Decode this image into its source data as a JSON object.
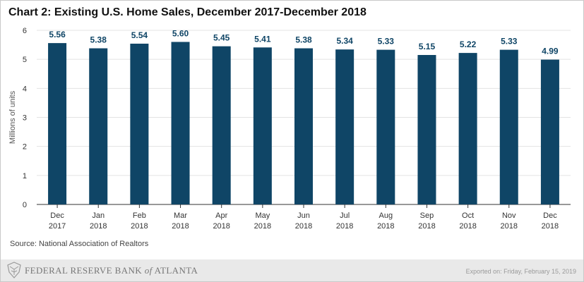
{
  "title": "Chart 2: Existing U.S. Home Sales, December 2017-December 2018",
  "source": "Source: National Association of Realtors",
  "footer": {
    "org_prefix": "FEDERAL RESERVE BANK",
    "org_of": "of",
    "org_suffix": "ATLANTA",
    "exported": "Exported on: Friday, February 15, 2019"
  },
  "colors": {
    "bar": "#0f4566",
    "label": "#0f4566",
    "grid": "#e3e3e3",
    "axis": "#333333"
  },
  "icons": {
    "logo": "eagle-seal-icon"
  },
  "chart_data": {
    "type": "bar",
    "categories": [
      [
        "Dec",
        "2017"
      ],
      [
        "Jan",
        "2018"
      ],
      [
        "Feb",
        "2018"
      ],
      [
        "Mar",
        "2018"
      ],
      [
        "Apr",
        "2018"
      ],
      [
        "May",
        "2018"
      ],
      [
        "Jun",
        "2018"
      ],
      [
        "Jul",
        "2018"
      ],
      [
        "Aug",
        "2018"
      ],
      [
        "Sep",
        "2018"
      ],
      [
        "Oct",
        "2018"
      ],
      [
        "Nov",
        "2018"
      ],
      [
        "Dec",
        "2018"
      ]
    ],
    "values": [
      5.56,
      5.38,
      5.54,
      5.6,
      5.45,
      5.41,
      5.38,
      5.34,
      5.33,
      5.15,
      5.22,
      5.33,
      4.99
    ],
    "data_labels": [
      "5.56",
      "5.38",
      "5.54",
      "5.60",
      "5.45",
      "5.41",
      "5.38",
      "5.34",
      "5.33",
      "5.15",
      "5.22",
      "5.33",
      "4.99"
    ],
    "ylabel": "Millions of units",
    "xlabel": "",
    "ylim": [
      0,
      6
    ],
    "yticks": [
      0,
      1,
      2,
      3,
      4,
      5,
      6
    ],
    "grid": true,
    "legend": "none"
  }
}
